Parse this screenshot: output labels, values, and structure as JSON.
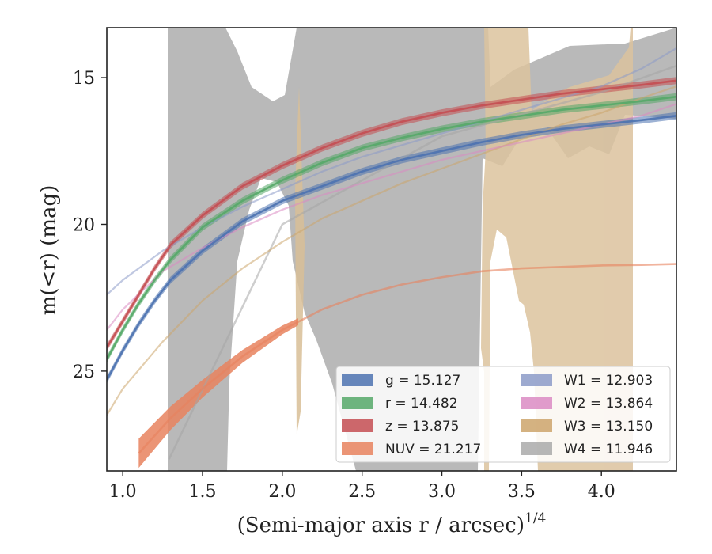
{
  "chart_data": {
    "type": "area",
    "title": "",
    "xlabel": "(Semi-major axis r / arcsec)",
    "xlabel_superscript": "1/4",
    "ylabel": "m(<r) (mag)",
    "xlim": [
      0.9,
      4.47
    ],
    "ylim": [
      28.4,
      13.3
    ],
    "y_inverted": true,
    "x_ticks": [
      1.0,
      1.5,
      2.0,
      2.5,
      3.0,
      3.5,
      4.0
    ],
    "x_tick_labels": [
      "1.0",
      "1.5",
      "2.0",
      "2.5",
      "3.0",
      "3.5",
      "4.0"
    ],
    "y_ticks": [
      15,
      20,
      25
    ],
    "y_tick_labels": [
      "15",
      "20",
      "25"
    ],
    "grid": false,
    "legend_position": "lower-right",
    "series": [
      {
        "name": "g",
        "label": "g = 15.127",
        "color": "#4C72B0",
        "x": [
          0.9,
          1.0,
          1.1,
          1.2,
          1.3,
          1.5,
          1.75,
          2.0,
          2.25,
          2.5,
          2.75,
          3.0,
          3.25,
          3.5,
          3.75,
          4.0,
          4.25,
          4.47
        ],
        "y": [
          25.3,
          24.3,
          23.4,
          22.6,
          21.9,
          20.9,
          19.9,
          19.2,
          18.7,
          18.2,
          17.8,
          17.5,
          17.2,
          16.95,
          16.75,
          16.6,
          16.45,
          16.3
        ],
        "band": 0.12
      },
      {
        "name": "r",
        "label": "r = 14.482",
        "color": "#55A868",
        "x": [
          0.9,
          1.0,
          1.1,
          1.2,
          1.3,
          1.5,
          1.75,
          2.0,
          2.25,
          2.5,
          2.75,
          3.0,
          3.25,
          3.5,
          3.75,
          4.0,
          4.25,
          4.47
        ],
        "y": [
          24.6,
          23.6,
          22.7,
          21.9,
          21.2,
          20.1,
          19.2,
          18.5,
          17.9,
          17.4,
          17.05,
          16.75,
          16.5,
          16.3,
          16.1,
          15.95,
          15.8,
          15.65
        ],
        "band": 0.12
      },
      {
        "name": "z",
        "label": "z = 13.875",
        "color": "#C44E52",
        "x": [
          0.9,
          1.0,
          1.1,
          1.2,
          1.3,
          1.5,
          1.75,
          2.0,
          2.25,
          2.5,
          2.75,
          3.0,
          3.25,
          3.5,
          3.75,
          4.0,
          4.25,
          4.47
        ],
        "y": [
          24.2,
          23.3,
          22.4,
          21.5,
          20.7,
          19.7,
          18.7,
          18.0,
          17.4,
          16.9,
          16.5,
          16.2,
          15.95,
          15.75,
          15.55,
          15.4,
          15.25,
          15.1
        ],
        "band": 0.12
      },
      {
        "name": "NUV",
        "label": "NUV = 21.217",
        "color": "#E8825E",
        "x": [
          1.1,
          1.3,
          1.5,
          1.75,
          2.0,
          2.25,
          2.5,
          2.75,
          3.0,
          3.25,
          3.5,
          3.75,
          4.0,
          4.25,
          4.47
        ],
        "y": [
          27.8,
          26.6,
          25.6,
          24.5,
          23.6,
          22.9,
          22.4,
          22.05,
          21.8,
          21.6,
          21.5,
          21.45,
          21.4,
          21.38,
          21.35
        ],
        "band_x": [
          1.1,
          1.3,
          1.5,
          1.75,
          2.0,
          2.1
        ],
        "band_halfwidth": [
          0.5,
          0.4,
          0.3,
          0.22,
          0.15,
          0.12
        ]
      },
      {
        "name": "W1",
        "label": "W1 = 12.903",
        "color": "#8C9BC8",
        "x": [
          0.9,
          1.0,
          1.25,
          1.5,
          1.75,
          2.0,
          2.25,
          2.5,
          2.75,
          3.0,
          3.25,
          3.5,
          3.75,
          4.0,
          4.25,
          4.47
        ],
        "y": [
          22.4,
          21.9,
          20.9,
          20.1,
          19.4,
          18.8,
          18.2,
          17.7,
          17.3,
          16.9,
          16.5,
          16.1,
          15.7,
          15.3,
          14.7,
          14.0
        ]
      },
      {
        "name": "W2",
        "label": "W2 = 13.864",
        "color": "#DA8BC3",
        "x": [
          0.9,
          1.0,
          1.25,
          1.5,
          1.75,
          2.0,
          2.25,
          2.5,
          2.75,
          3.0,
          3.25,
          3.5,
          3.75,
          4.0,
          4.25,
          4.47
        ],
        "y": [
          23.6,
          22.9,
          21.6,
          20.8,
          20.1,
          19.5,
          19.0,
          18.6,
          18.2,
          17.8,
          17.5,
          17.2,
          16.9,
          16.6,
          16.3,
          15.9
        ]
      },
      {
        "name": "W3",
        "label": "W3 = 13.150",
        "color": "#CCA56B",
        "x": [
          0.9,
          1.0,
          1.25,
          1.5,
          1.75,
          2.0,
          2.25,
          2.5,
          2.75,
          3.0,
          3.25,
          3.5,
          3.75,
          4.0,
          4.25,
          4.47
        ],
        "y": [
          26.5,
          25.6,
          24.0,
          22.6,
          21.5,
          20.6,
          19.8,
          19.2,
          18.6,
          18.1,
          17.6,
          17.1,
          16.6,
          16.2,
          15.7,
          15.3
        ]
      },
      {
        "name": "W4",
        "label": "W4 = 11.946",
        "color": "#A5A5A5",
        "x": [
          1.29,
          2.0,
          3.0,
          4.0,
          4.47
        ],
        "y": [
          28.0,
          20.0,
          17.0,
          15.5,
          14.6
        ]
      }
    ]
  }
}
